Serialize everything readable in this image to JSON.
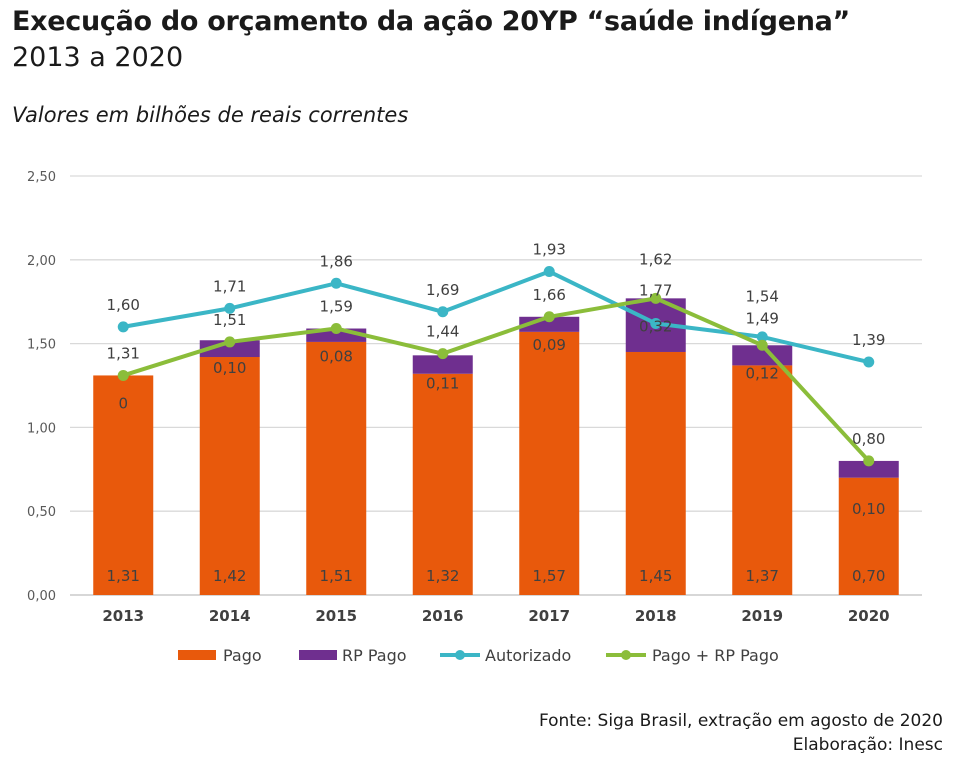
{
  "header": {
    "title": "Execução do orçamento da ação 20YP “saúde indígena”",
    "subtitle": "2013 a 2020",
    "units": "Valores em bilhões de reais correntes"
  },
  "footer": {
    "source": "Fonte: Siga Brasil, extração em agosto de 2020",
    "credit": "Elaboração: Inesc"
  },
  "colors": {
    "pago": "#e8590c",
    "rp_pago": "#6f2f8f",
    "autorizado": "#3bb6c6",
    "pago_rp": "#8bbd3a",
    "grid": "#d9d9d9",
    "axis_text": "#595959"
  },
  "chart_data": {
    "type": "bar",
    "categories": [
      "2013",
      "2014",
      "2015",
      "2016",
      "2017",
      "2018",
      "2019",
      "2020"
    ],
    "ylim": [
      0,
      2.5
    ],
    "yticks": [
      "0,00",
      "0,50",
      "1,00",
      "1,50",
      "2,00",
      "2,50"
    ],
    "ytick_values": [
      0,
      0.5,
      1.0,
      1.5,
      2.0,
      2.5
    ],
    "grid": true,
    "legend_position": "bottom",
    "series": [
      {
        "name": "Pago",
        "kind": "bar",
        "values": [
          1.31,
          1.42,
          1.51,
          1.32,
          1.57,
          1.45,
          1.37,
          0.7
        ],
        "labels": [
          "1,31",
          "1,42",
          "1,51",
          "1,32",
          "1,57",
          "1,45",
          "1,37",
          "0,70"
        ]
      },
      {
        "name": "RP Pago",
        "kind": "bar",
        "values": [
          0,
          0.1,
          0.08,
          0.11,
          0.09,
          0.32,
          0.12,
          0.1
        ],
        "labels": [
          "0",
          "0,10",
          "0,08",
          "0,11",
          "0,09",
          "0,32",
          "0,12",
          "0,10"
        ]
      },
      {
        "name": "Autorizado",
        "kind": "line",
        "values": [
          1.6,
          1.71,
          1.86,
          1.69,
          1.93,
          1.62,
          1.54,
          1.39
        ],
        "labels": [
          "1,60",
          "1,71",
          "1,86",
          "1,69",
          "1,93",
          "1,62",
          "1,54",
          "1,39"
        ]
      },
      {
        "name": "Pago + RP Pago",
        "kind": "line",
        "values": [
          1.31,
          1.51,
          1.59,
          1.44,
          1.66,
          1.77,
          1.49,
          0.8
        ],
        "labels": [
          "1,31",
          "1,51",
          "1,59",
          "1,44",
          "1,66",
          "1,77",
          "1,49",
          "0,80"
        ]
      }
    ]
  }
}
